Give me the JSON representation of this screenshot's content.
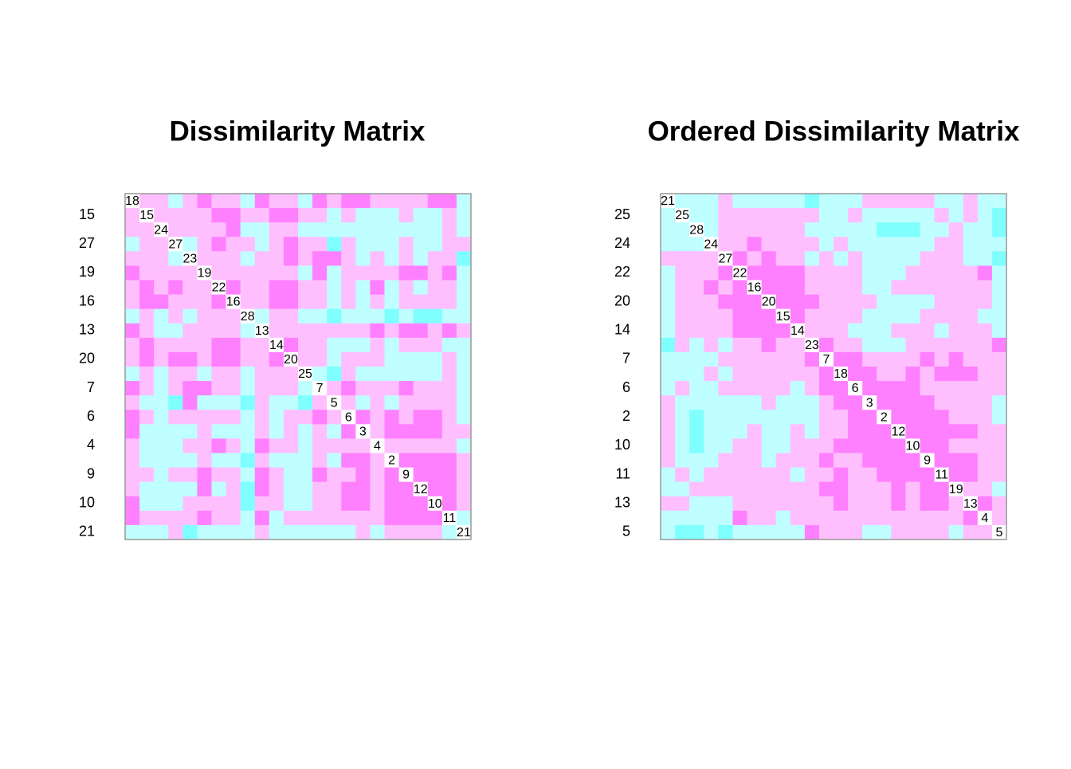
{
  "chart_data": [
    {
      "type": "heatmap",
      "title": "Dissimilarity Matrix",
      "colors": [
        "#FFFFFF",
        "#FF80FF",
        "#FFBFFF",
        "#BFFFFF",
        "#80FFFF"
      ],
      "labels": [
        "18",
        "15",
        "24",
        "27",
        "23",
        "19",
        "22",
        "16",
        "28",
        "13",
        "14",
        "20",
        "25",
        "7",
        "5",
        "6",
        "3",
        "4",
        "2",
        "9",
        "12",
        "10",
        "11",
        "21"
      ],
      "values": [
        [
          0,
          2,
          2,
          3,
          2,
          1,
          2,
          2,
          3,
          1,
          2,
          2,
          3,
          1,
          2,
          1,
          1,
          2,
          2,
          2,
          2,
          1,
          1,
          3
        ],
        [
          2,
          0,
          2,
          2,
          2,
          2,
          1,
          1,
          2,
          2,
          1,
          1,
          2,
          2,
          3,
          2,
          3,
          3,
          3,
          2,
          3,
          3,
          2,
          3
        ],
        [
          2,
          2,
          0,
          2,
          2,
          2,
          2,
          1,
          3,
          3,
          2,
          2,
          3,
          3,
          3,
          3,
          3,
          3,
          3,
          3,
          3,
          3,
          2,
          3
        ],
        [
          3,
          2,
          2,
          0,
          3,
          2,
          1,
          2,
          2,
          3,
          2,
          1,
          2,
          2,
          4,
          2,
          3,
          3,
          3,
          2,
          3,
          3,
          2,
          2
        ],
        [
          2,
          2,
          2,
          3,
          0,
          2,
          2,
          2,
          3,
          2,
          2,
          1,
          2,
          1,
          1,
          2,
          3,
          2,
          3,
          2,
          3,
          2,
          2,
          4
        ],
        [
          1,
          2,
          2,
          2,
          2,
          0,
          2,
          2,
          2,
          2,
          2,
          2,
          3,
          1,
          3,
          2,
          2,
          2,
          2,
          1,
          1,
          2,
          1,
          3
        ],
        [
          2,
          1,
          2,
          1,
          2,
          2,
          0,
          1,
          2,
          2,
          1,
          1,
          2,
          2,
          3,
          2,
          3,
          1,
          3,
          2,
          3,
          2,
          2,
          3
        ],
        [
          2,
          1,
          1,
          2,
          2,
          2,
          1,
          0,
          2,
          2,
          1,
          1,
          2,
          2,
          3,
          2,
          3,
          2,
          3,
          2,
          2,
          2,
          2,
          3
        ],
        [
          3,
          2,
          3,
          2,
          3,
          2,
          2,
          2,
          0,
          3,
          2,
          2,
          3,
          3,
          4,
          3,
          3,
          3,
          4,
          3,
          4,
          4,
          3,
          3
        ],
        [
          1,
          2,
          3,
          3,
          2,
          2,
          2,
          2,
          3,
          0,
          2,
          2,
          2,
          2,
          2,
          2,
          2,
          1,
          2,
          1,
          1,
          2,
          1,
          2
        ],
        [
          2,
          1,
          2,
          2,
          2,
          2,
          1,
          1,
          2,
          2,
          0,
          1,
          2,
          2,
          3,
          3,
          3,
          2,
          3,
          2,
          2,
          2,
          3,
          3
        ],
        [
          2,
          1,
          2,
          1,
          1,
          2,
          1,
          1,
          2,
          2,
          1,
          0,
          2,
          2,
          3,
          2,
          2,
          2,
          3,
          3,
          3,
          3,
          2,
          3
        ],
        [
          3,
          2,
          3,
          2,
          2,
          3,
          2,
          2,
          3,
          2,
          2,
          2,
          0,
          3,
          4,
          2,
          3,
          3,
          3,
          3,
          3,
          3,
          2,
          3
        ],
        [
          1,
          2,
          3,
          2,
          1,
          1,
          2,
          2,
          3,
          2,
          2,
          2,
          3,
          0,
          2,
          1,
          2,
          2,
          2,
          1,
          2,
          2,
          2,
          3
        ],
        [
          2,
          3,
          3,
          4,
          1,
          3,
          3,
          3,
          4,
          2,
          3,
          3,
          4,
          2,
          0,
          2,
          3,
          2,
          3,
          2,
          2,
          2,
          2,
          3
        ],
        [
          1,
          2,
          3,
          2,
          2,
          2,
          2,
          2,
          3,
          2,
          3,
          2,
          2,
          1,
          2,
          0,
          1,
          2,
          1,
          2,
          1,
          1,
          2,
          3
        ],
        [
          1,
          3,
          3,
          3,
          3,
          2,
          3,
          3,
          3,
          2,
          3,
          2,
          3,
          2,
          3,
          1,
          0,
          2,
          1,
          1,
          1,
          1,
          2,
          2
        ],
        [
          2,
          3,
          3,
          3,
          2,
          2,
          1,
          2,
          3,
          1,
          2,
          2,
          3,
          2,
          2,
          2,
          2,
          0,
          2,
          2,
          2,
          2,
          2,
          3
        ],
        [
          2,
          3,
          3,
          3,
          3,
          2,
          3,
          3,
          4,
          2,
          3,
          3,
          3,
          2,
          3,
          1,
          1,
          2,
          0,
          1,
          1,
          1,
          1,
          2
        ],
        [
          2,
          2,
          3,
          2,
          2,
          1,
          2,
          2,
          3,
          1,
          2,
          3,
          3,
          1,
          2,
          2,
          1,
          2,
          1,
          0,
          1,
          1,
          1,
          2
        ],
        [
          2,
          3,
          3,
          3,
          3,
          1,
          3,
          2,
          4,
          1,
          2,
          3,
          3,
          2,
          2,
          1,
          1,
          2,
          1,
          1,
          0,
          1,
          1,
          2
        ],
        [
          1,
          3,
          3,
          3,
          2,
          2,
          2,
          2,
          4,
          2,
          2,
          3,
          3,
          2,
          2,
          1,
          1,
          2,
          1,
          1,
          1,
          0,
          1,
          2
        ],
        [
          1,
          2,
          2,
          2,
          2,
          1,
          2,
          2,
          3,
          1,
          3,
          2,
          2,
          2,
          2,
          2,
          2,
          2,
          1,
          1,
          1,
          1,
          0,
          3
        ],
        [
          3,
          3,
          3,
          2,
          4,
          3,
          3,
          3,
          3,
          2,
          3,
          3,
          3,
          3,
          3,
          3,
          2,
          3,
          2,
          2,
          2,
          2,
          3,
          0
        ]
      ]
    },
    {
      "type": "heatmap",
      "title": "Ordered Dissimilarity Matrix",
      "colors": [
        "#FFFFFF",
        "#FF80FF",
        "#FFBFFF",
        "#BFFFFF",
        "#80FFFF"
      ],
      "labels": [
        "21",
        "25",
        "28",
        "24",
        "27",
        "22",
        "16",
        "20",
        "15",
        "14",
        "23",
        "7",
        "18",
        "6",
        "3",
        "2",
        "12",
        "10",
        "9",
        "11",
        "19",
        "13",
        "4",
        "5"
      ],
      "values": [
        [
          0,
          3,
          3,
          3,
          2,
          3,
          3,
          3,
          3,
          3,
          4,
          3,
          3,
          3,
          2,
          2,
          2,
          2,
          2,
          3,
          3,
          2,
          3,
          3
        ],
        [
          3,
          0,
          3,
          3,
          2,
          2,
          2,
          2,
          2,
          2,
          2,
          3,
          3,
          2,
          3,
          3,
          3,
          3,
          3,
          2,
          3,
          2,
          3,
          4
        ],
        [
          3,
          3,
          0,
          3,
          2,
          2,
          2,
          2,
          2,
          2,
          3,
          3,
          3,
          3,
          3,
          4,
          4,
          4,
          3,
          3,
          2,
          3,
          3,
          4
        ],
        [
          3,
          3,
          3,
          0,
          2,
          2,
          1,
          2,
          2,
          2,
          2,
          3,
          2,
          3,
          3,
          3,
          3,
          3,
          3,
          2,
          2,
          3,
          3,
          3
        ],
        [
          2,
          2,
          2,
          2,
          0,
          1,
          2,
          1,
          2,
          2,
          3,
          2,
          3,
          2,
          3,
          3,
          3,
          3,
          2,
          2,
          2,
          3,
          3,
          4
        ],
        [
          3,
          2,
          2,
          2,
          1,
          0,
          1,
          1,
          1,
          1,
          2,
          2,
          2,
          2,
          3,
          3,
          3,
          2,
          2,
          2,
          2,
          2,
          1,
          3
        ],
        [
          3,
          2,
          2,
          1,
          2,
          1,
          0,
          1,
          1,
          1,
          2,
          2,
          2,
          2,
          3,
          3,
          2,
          2,
          2,
          2,
          2,
          2,
          2,
          3
        ],
        [
          3,
          2,
          2,
          2,
          1,
          1,
          1,
          0,
          1,
          1,
          1,
          2,
          2,
          2,
          2,
          3,
          3,
          3,
          3,
          2,
          2,
          2,
          2,
          3
        ],
        [
          3,
          2,
          2,
          2,
          2,
          1,
          1,
          1,
          0,
          1,
          2,
          2,
          2,
          2,
          3,
          3,
          3,
          3,
          2,
          2,
          2,
          2,
          3,
          3
        ],
        [
          3,
          2,
          2,
          2,
          2,
          1,
          1,
          1,
          1,
          0,
          2,
          2,
          2,
          3,
          3,
          3,
          2,
          2,
          2,
          3,
          2,
          2,
          2,
          3
        ],
        [
          4,
          2,
          3,
          2,
          3,
          2,
          2,
          1,
          2,
          2,
          0,
          1,
          2,
          2,
          3,
          3,
          3,
          2,
          2,
          2,
          2,
          2,
          2,
          1
        ],
        [
          3,
          3,
          3,
          3,
          2,
          2,
          2,
          2,
          2,
          2,
          1,
          0,
          1,
          1,
          2,
          2,
          2,
          2,
          1,
          2,
          1,
          2,
          2,
          2
        ],
        [
          3,
          3,
          3,
          2,
          3,
          2,
          2,
          2,
          2,
          2,
          2,
          1,
          0,
          1,
          1,
          2,
          2,
          1,
          2,
          1,
          1,
          1,
          2,
          2
        ],
        [
          3,
          2,
          3,
          3,
          2,
          2,
          2,
          2,
          2,
          3,
          2,
          1,
          1,
          0,
          1,
          1,
          1,
          1,
          2,
          2,
          2,
          2,
          2,
          2
        ],
        [
          2,
          3,
          3,
          3,
          3,
          3,
          3,
          2,
          3,
          3,
          3,
          2,
          1,
          1,
          0,
          1,
          1,
          1,
          1,
          2,
          2,
          2,
          2,
          3
        ],
        [
          2,
          3,
          4,
          3,
          3,
          3,
          3,
          3,
          3,
          3,
          3,
          2,
          2,
          1,
          1,
          0,
          1,
          1,
          1,
          1,
          2,
          2,
          2,
          3
        ],
        [
          2,
          3,
          4,
          3,
          3,
          3,
          2,
          3,
          3,
          2,
          3,
          2,
          2,
          1,
          1,
          1,
          0,
          1,
          1,
          1,
          1,
          1,
          2,
          2
        ],
        [
          2,
          3,
          4,
          3,
          3,
          2,
          2,
          3,
          3,
          2,
          2,
          2,
          1,
          1,
          1,
          1,
          1,
          0,
          1,
          1,
          2,
          2,
          2,
          2
        ],
        [
          2,
          3,
          3,
          3,
          2,
          2,
          2,
          3,
          2,
          2,
          2,
          1,
          2,
          2,
          1,
          1,
          1,
          1,
          0,
          1,
          1,
          1,
          2,
          2
        ],
        [
          3,
          2,
          3,
          2,
          2,
          2,
          2,
          2,
          2,
          3,
          2,
          2,
          1,
          2,
          2,
          1,
          1,
          1,
          1,
          0,
          1,
          1,
          2,
          2
        ],
        [
          3,
          3,
          2,
          2,
          2,
          2,
          2,
          2,
          2,
          2,
          2,
          1,
          1,
          2,
          2,
          2,
          1,
          2,
          1,
          1,
          0,
          2,
          2,
          3
        ],
        [
          2,
          2,
          3,
          3,
          3,
          2,
          2,
          2,
          2,
          2,
          2,
          2,
          1,
          2,
          2,
          2,
          1,
          2,
          1,
          1,
          2,
          0,
          1,
          2
        ],
        [
          3,
          3,
          3,
          3,
          3,
          1,
          2,
          2,
          3,
          2,
          2,
          2,
          2,
          2,
          2,
          2,
          2,
          2,
          2,
          2,
          2,
          1,
          0,
          2
        ],
        [
          3,
          4,
          4,
          3,
          4,
          3,
          3,
          3,
          3,
          3,
          1,
          2,
          2,
          2,
          3,
          3,
          2,
          2,
          2,
          2,
          3,
          2,
          2,
          0
        ]
      ]
    }
  ]
}
